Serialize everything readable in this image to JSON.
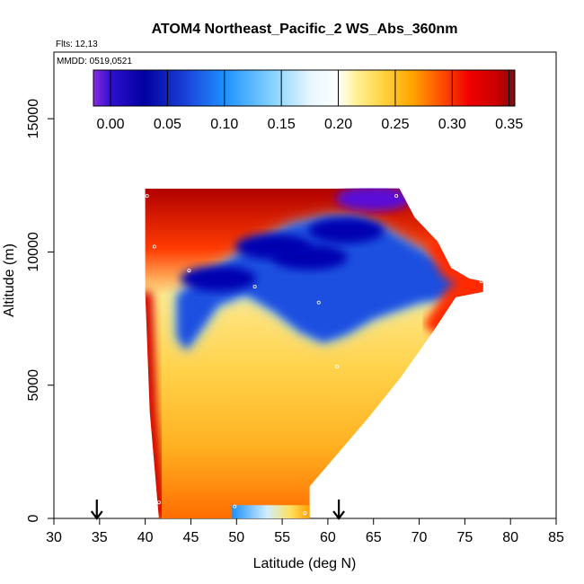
{
  "chart_data": {
    "type": "heatmap",
    "title": "ATOM4 Northeast_Pacific_2 WS_Abs_360nm",
    "flights_label": "Flts: 12,13",
    "dates_label": "MMDD: 0519,0521",
    "xlabel": "Latitude (deg N)",
    "ylabel": "Altitude (m)",
    "xlim": [
      30,
      85
    ],
    "ylim": [
      0,
      17500
    ],
    "x_ticks": [
      "30",
      "35",
      "40",
      "45",
      "50",
      "55",
      "60",
      "65",
      "70",
      "75",
      "80",
      "85"
    ],
    "y_ticks": [
      "0",
      "5000",
      "10000",
      "15000"
    ],
    "colorbar_ticks": [
      "0.00",
      "0.05",
      "0.10",
      "0.15",
      "0.20",
      "0.25",
      "0.30",
      "0.35"
    ],
    "colorbar_range": [
      -0.015,
      0.355
    ],
    "arrows_latitude": [
      34.7,
      61.2
    ],
    "grid": false,
    "field_outline": [
      [
        40,
        12400
      ],
      [
        67.8,
        12400
      ],
      [
        69.5,
        11300
      ],
      [
        72,
        10400
      ],
      [
        73.5,
        9400
      ],
      [
        75.5,
        9000
      ],
      [
        77,
        8900
      ],
      [
        77,
        8500
      ],
      [
        74,
        8300
      ],
      [
        71.5,
        7000
      ],
      [
        68,
        5300
      ],
      [
        64.5,
        3800
      ],
      [
        60.5,
        2200
      ],
      [
        58,
        1200
      ],
      [
        58,
        0
      ],
      [
        41.5,
        0
      ],
      [
        40.5,
        4000
      ],
      [
        40,
        8500
      ]
    ],
    "blue_band": [
      [
        43.5,
        8400
      ],
      [
        48,
        9400
      ],
      [
        52,
        10300
      ],
      [
        56,
        11000
      ],
      [
        60,
        11300
      ],
      [
        63,
        11300
      ],
      [
        66,
        10900
      ],
      [
        70,
        10100
      ],
      [
        74,
        9300
      ],
      [
        77,
        8900
      ],
      [
        77,
        8500
      ],
      [
        74,
        8300
      ],
      [
        70,
        8100
      ],
      [
        65,
        7500
      ],
      [
        62,
        6900
      ],
      [
        59.5,
        6600
      ],
      [
        57,
        7000
      ],
      [
        54,
        7800
      ],
      [
        51,
        8400
      ],
      [
        48,
        8000
      ],
      [
        44.5,
        6300
      ],
      [
        43.5,
        6800
      ]
    ],
    "core_minima": [
      [
        65,
        12000
      ],
      [
        62,
        10800
      ],
      [
        58,
        9800
      ],
      [
        54,
        10200
      ],
      [
        48,
        9000
      ]
    ],
    "surface_streak": [
      [
        49.5,
        0
      ],
      [
        49.5,
        500
      ],
      [
        58,
        500
      ],
      [
        58,
        0
      ]
    ],
    "points": [
      [
        40.2,
        12100
      ],
      [
        41,
        10200
      ],
      [
        44.8,
        9300
      ],
      [
        49.8,
        450
      ],
      [
        52,
        8700
      ],
      [
        59,
        8100
      ],
      [
        61,
        5700
      ],
      [
        67.5,
        12100
      ],
      [
        75.5,
        8200
      ],
      [
        76.8,
        8900
      ],
      [
        41.5,
        600
      ],
      [
        57.5,
        200
      ]
    ]
  }
}
